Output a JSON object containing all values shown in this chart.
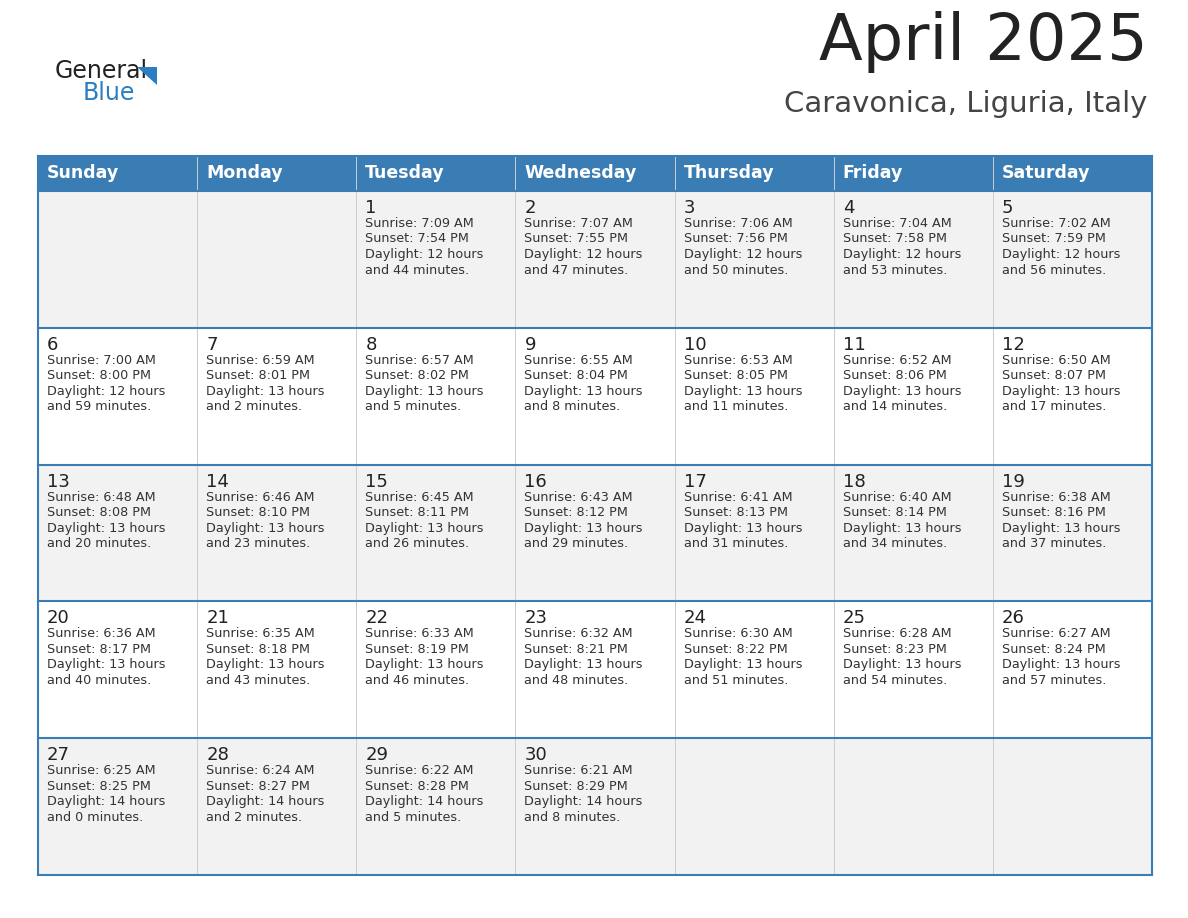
{
  "title": "April 2025",
  "subtitle": "Caravonica, Liguria, Italy",
  "title_color": "#222222",
  "subtitle_color": "#444444",
  "header_bg_color": "#3a7db5",
  "header_text_color": "#ffffff",
  "row_bg_alt": "#f2f2f2",
  "row_bg_normal": "#ffffff",
  "day_number_color": "#222222",
  "info_text_color": "#333333",
  "border_color": "#3a7db5",
  "divider_color": "#3a7db5",
  "col_divider_color": "#cccccc",
  "days_of_week": [
    "Sunday",
    "Monday",
    "Tuesday",
    "Wednesday",
    "Thursday",
    "Friday",
    "Saturday"
  ],
  "logo_general_color": "#222222",
  "logo_blue_color": "#2b7ec1",
  "logo_triangle_color": "#2b7ec1",
  "weeks": [
    [
      {
        "day": "",
        "info": ""
      },
      {
        "day": "",
        "info": ""
      },
      {
        "day": "1",
        "info": "Sunrise: 7:09 AM\nSunset: 7:54 PM\nDaylight: 12 hours\nand 44 minutes."
      },
      {
        "day": "2",
        "info": "Sunrise: 7:07 AM\nSunset: 7:55 PM\nDaylight: 12 hours\nand 47 minutes."
      },
      {
        "day": "3",
        "info": "Sunrise: 7:06 AM\nSunset: 7:56 PM\nDaylight: 12 hours\nand 50 minutes."
      },
      {
        "day": "4",
        "info": "Sunrise: 7:04 AM\nSunset: 7:58 PM\nDaylight: 12 hours\nand 53 minutes."
      },
      {
        "day": "5",
        "info": "Sunrise: 7:02 AM\nSunset: 7:59 PM\nDaylight: 12 hours\nand 56 minutes."
      }
    ],
    [
      {
        "day": "6",
        "info": "Sunrise: 7:00 AM\nSunset: 8:00 PM\nDaylight: 12 hours\nand 59 minutes."
      },
      {
        "day": "7",
        "info": "Sunrise: 6:59 AM\nSunset: 8:01 PM\nDaylight: 13 hours\nand 2 minutes."
      },
      {
        "day": "8",
        "info": "Sunrise: 6:57 AM\nSunset: 8:02 PM\nDaylight: 13 hours\nand 5 minutes."
      },
      {
        "day": "9",
        "info": "Sunrise: 6:55 AM\nSunset: 8:04 PM\nDaylight: 13 hours\nand 8 minutes."
      },
      {
        "day": "10",
        "info": "Sunrise: 6:53 AM\nSunset: 8:05 PM\nDaylight: 13 hours\nand 11 minutes."
      },
      {
        "day": "11",
        "info": "Sunrise: 6:52 AM\nSunset: 8:06 PM\nDaylight: 13 hours\nand 14 minutes."
      },
      {
        "day": "12",
        "info": "Sunrise: 6:50 AM\nSunset: 8:07 PM\nDaylight: 13 hours\nand 17 minutes."
      }
    ],
    [
      {
        "day": "13",
        "info": "Sunrise: 6:48 AM\nSunset: 8:08 PM\nDaylight: 13 hours\nand 20 minutes."
      },
      {
        "day": "14",
        "info": "Sunrise: 6:46 AM\nSunset: 8:10 PM\nDaylight: 13 hours\nand 23 minutes."
      },
      {
        "day": "15",
        "info": "Sunrise: 6:45 AM\nSunset: 8:11 PM\nDaylight: 13 hours\nand 26 minutes."
      },
      {
        "day": "16",
        "info": "Sunrise: 6:43 AM\nSunset: 8:12 PM\nDaylight: 13 hours\nand 29 minutes."
      },
      {
        "day": "17",
        "info": "Sunrise: 6:41 AM\nSunset: 8:13 PM\nDaylight: 13 hours\nand 31 minutes."
      },
      {
        "day": "18",
        "info": "Sunrise: 6:40 AM\nSunset: 8:14 PM\nDaylight: 13 hours\nand 34 minutes."
      },
      {
        "day": "19",
        "info": "Sunrise: 6:38 AM\nSunset: 8:16 PM\nDaylight: 13 hours\nand 37 minutes."
      }
    ],
    [
      {
        "day": "20",
        "info": "Sunrise: 6:36 AM\nSunset: 8:17 PM\nDaylight: 13 hours\nand 40 minutes."
      },
      {
        "day": "21",
        "info": "Sunrise: 6:35 AM\nSunset: 8:18 PM\nDaylight: 13 hours\nand 43 minutes."
      },
      {
        "day": "22",
        "info": "Sunrise: 6:33 AM\nSunset: 8:19 PM\nDaylight: 13 hours\nand 46 minutes."
      },
      {
        "day": "23",
        "info": "Sunrise: 6:32 AM\nSunset: 8:21 PM\nDaylight: 13 hours\nand 48 minutes."
      },
      {
        "day": "24",
        "info": "Sunrise: 6:30 AM\nSunset: 8:22 PM\nDaylight: 13 hours\nand 51 minutes."
      },
      {
        "day": "25",
        "info": "Sunrise: 6:28 AM\nSunset: 8:23 PM\nDaylight: 13 hours\nand 54 minutes."
      },
      {
        "day": "26",
        "info": "Sunrise: 6:27 AM\nSunset: 8:24 PM\nDaylight: 13 hours\nand 57 minutes."
      }
    ],
    [
      {
        "day": "27",
        "info": "Sunrise: 6:25 AM\nSunset: 8:25 PM\nDaylight: 14 hours\nand 0 minutes."
      },
      {
        "day": "28",
        "info": "Sunrise: 6:24 AM\nSunset: 8:27 PM\nDaylight: 14 hours\nand 2 minutes."
      },
      {
        "day": "29",
        "info": "Sunrise: 6:22 AM\nSunset: 8:28 PM\nDaylight: 14 hours\nand 5 minutes."
      },
      {
        "day": "30",
        "info": "Sunrise: 6:21 AM\nSunset: 8:29 PM\nDaylight: 14 hours\nand 8 minutes."
      },
      {
        "day": "",
        "info": ""
      },
      {
        "day": "",
        "info": ""
      },
      {
        "day": "",
        "info": ""
      }
    ]
  ]
}
